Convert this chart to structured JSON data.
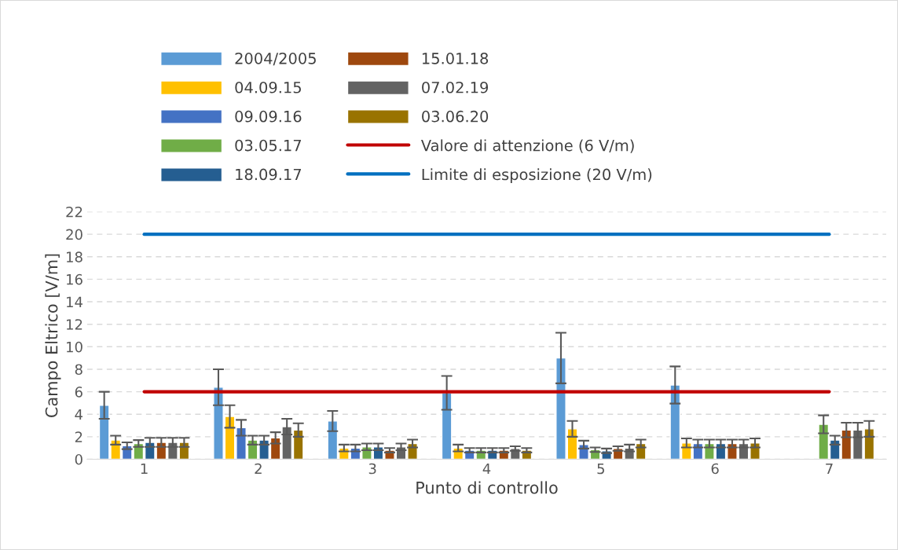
{
  "chart_data": {
    "type": "bar",
    "xlabel": "Punto di controllo",
    "ylabel": "Campo Eltrico [V/m]",
    "categories": [
      "1",
      "2",
      "3",
      "4",
      "5",
      "6",
      "7"
    ],
    "series": [
      {
        "name": "2004/2005",
        "color": "#5b9bd5",
        "values": [
          4.8,
          6.4,
          3.4,
          5.9,
          9.0,
          6.6,
          null
        ],
        "errors": [
          1.2,
          1.6,
          0.9,
          1.5,
          2.25,
          1.65,
          null
        ]
      },
      {
        "name": "04.09.15",
        "color": "#ffc000",
        "values": [
          1.7,
          3.8,
          1.0,
          1.0,
          2.7,
          1.45,
          null
        ],
        "errors": [
          0.4,
          1.0,
          0.3,
          0.3,
          0.7,
          0.4,
          null
        ]
      },
      {
        "name": "09.09.16",
        "color": "#4472c4",
        "values": [
          1.2,
          2.8,
          1.0,
          0.8,
          1.3,
          1.4,
          null
        ],
        "errors": [
          0.3,
          0.7,
          0.3,
          0.2,
          0.35,
          0.35,
          null
        ]
      },
      {
        "name": "03.05.17",
        "color": "#70ad47",
        "values": [
          1.4,
          1.7,
          1.1,
          0.8,
          0.85,
          1.4,
          3.1
        ],
        "errors": [
          0.3,
          0.4,
          0.3,
          0.2,
          0.2,
          0.35,
          0.8
        ]
      },
      {
        "name": "18.09.17",
        "color": "#255e91",
        "values": [
          1.5,
          1.7,
          1.1,
          0.8,
          0.75,
          1.4,
          1.7
        ],
        "errors": [
          0.4,
          0.4,
          0.3,
          0.2,
          0.2,
          0.35,
          0.4
        ]
      },
      {
        "name": "15.01.18",
        "color": "#9e480e",
        "values": [
          1.5,
          1.9,
          0.8,
          0.8,
          0.95,
          1.4,
          2.6
        ],
        "errors": [
          0.4,
          0.5,
          0.2,
          0.2,
          0.2,
          0.35,
          0.65
        ]
      },
      {
        "name": "07.02.19",
        "color": "#636363",
        "values": [
          1.5,
          2.9,
          1.1,
          0.95,
          1.0,
          1.4,
          2.6
        ],
        "errors": [
          0.4,
          0.7,
          0.3,
          0.2,
          0.3,
          0.35,
          0.65
        ]
      },
      {
        "name": "03.06.20",
        "color": "#997300",
        "values": [
          1.5,
          2.6,
          1.4,
          0.8,
          1.4,
          1.45,
          2.7
        ],
        "errors": [
          0.4,
          0.6,
          0.35,
          0.2,
          0.35,
          0.4,
          0.7
        ]
      },
      {
        "name": "Valore di attenzione (6 V/m)",
        "type": "line",
        "color": "#c00000",
        "values": [
          6,
          6,
          6,
          6,
          6,
          6,
          6
        ]
      },
      {
        "name": "Limite di esposizione (20 V/m)",
        "type": "line",
        "color": "#0070c0",
        "values": [
          20,
          20,
          20,
          20,
          20,
          20,
          20
        ]
      }
    ],
    "ylim": [
      0,
      22
    ],
    "yticks": [
      0,
      2,
      4,
      6,
      8,
      10,
      12,
      14,
      16,
      18,
      20,
      22
    ],
    "grid": "y",
    "legend": "top",
    "marker": "none",
    "line_style": "solid"
  }
}
